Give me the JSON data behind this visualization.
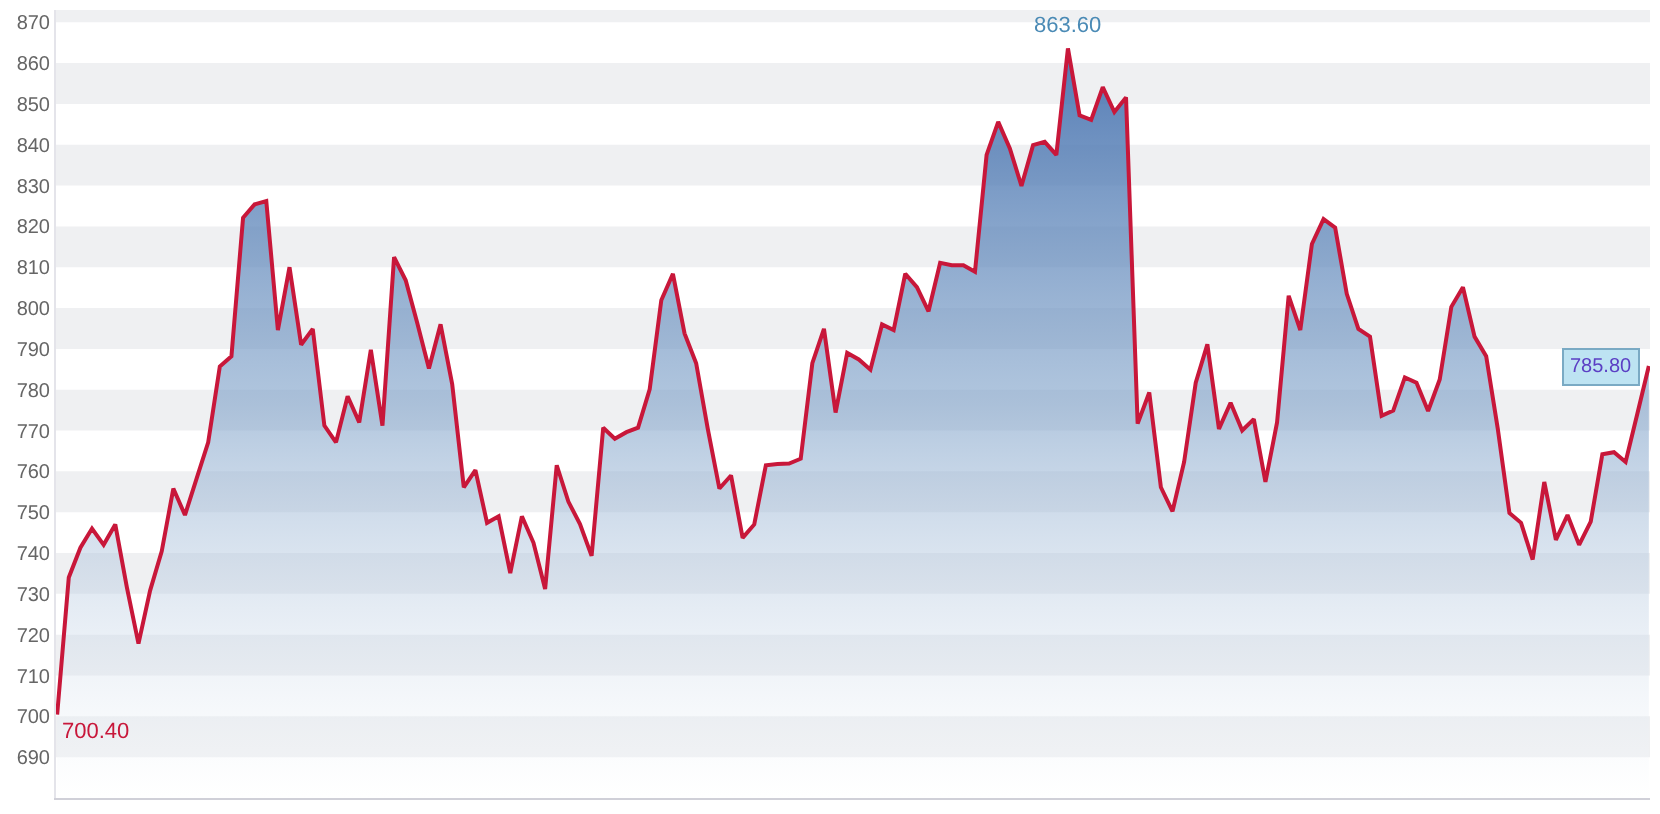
{
  "chart_data": {
    "type": "area",
    "categories": [
      null,
      null,
      null,
      null,
      null,
      null,
      null,
      null,
      null,
      null,
      null,
      null,
      null,
      null,
      null,
      null,
      null,
      null,
      null,
      null,
      null,
      null,
      null,
      null,
      null,
      null,
      null,
      null,
      null,
      null,
      null,
      null,
      null,
      null,
      null,
      null,
      null,
      null,
      null,
      null,
      null,
      null,
      null,
      null,
      null,
      null,
      null,
      null,
      null,
      null,
      null,
      null,
      null,
      null,
      null,
      null,
      null,
      null,
      null,
      null,
      null,
      null,
      null,
      null,
      null,
      null,
      null,
      null,
      null,
      null,
      null,
      null,
      null,
      null,
      null,
      null,
      null,
      null,
      null,
      null,
      null,
      null,
      null,
      null,
      null,
      null,
      null,
      null,
      null,
      null,
      null,
      null,
      null,
      null,
      null,
      null,
      null,
      null,
      null,
      null,
      null,
      null,
      null,
      null,
      null,
      null,
      null,
      null,
      null,
      null,
      null,
      null,
      null,
      null,
      null,
      null,
      null,
      null,
      null,
      null,
      null,
      null,
      null,
      null,
      null,
      null,
      null,
      null,
      null,
      null,
      null,
      null,
      null,
      null,
      null,
      null,
      null,
      null
    ],
    "series": [
      {
        "color": "#c8173a",
        "values": [
          700.4,
          734,
          741.3,
          746,
          742,
          747,
          731.6,
          717.8,
          730.8,
          740.4,
          755.8,
          749.3,
          758.2,
          767.1,
          785.7,
          788.2,
          822.1,
          825.4,
          826.2,
          794.6,
          810,
          791,
          794.9,
          771.2,
          767.1,
          778.4,
          772,
          789.8,
          771.2,
          812.5,
          806.8,
          796.3,
          785.2,
          796,
          781.4,
          756.1,
          760.3,
          747.4,
          749,
          735.1,
          749,
          742.5,
          731.2,
          761.5,
          752.6,
          747.1,
          739.3,
          770.7,
          768,
          769.6,
          770.7,
          780.1,
          801.9,
          808.4,
          793.8,
          786.5,
          770.4,
          755.8,
          759,
          743.7,
          747,
          761.5,
          761.8,
          761.9,
          763.1,
          786.5,
          794.9,
          774.4,
          789,
          787.4,
          784.9,
          796,
          794.6,
          808.4,
          805.1,
          799.2,
          811.1,
          810.5,
          810.5,
          808.9,
          837.5,
          845.6,
          839.1,
          829.9,
          839.9,
          840.7,
          837.5,
          863.6,
          847.2,
          846.1,
          854.1,
          848,
          851.6,
          771.7,
          779.3,
          756.1,
          750.2,
          762.3,
          781.7,
          791.1,
          770.4,
          776.8,
          770,
          772.8,
          757.4,
          772,
          803,
          794.6,
          815.7,
          821.8,
          819.7,
          803.5,
          794.9,
          793,
          773.6,
          774.9,
          783,
          781.7,
          774.8,
          782.5,
          800.3,
          805.1,
          793,
          788.2,
          770.4,
          749.8,
          747.4,
          738.4,
          757.4,
          743.2,
          749.3,
          742,
          747.7,
          764.2,
          764.7,
          762.3,
          774,
          785.8
        ]
      }
    ],
    "ylim": [
      680,
      873
    ],
    "yticks": [
      690,
      700,
      710,
      720,
      730,
      740,
      750,
      760,
      770,
      780,
      790,
      800,
      810,
      820,
      830,
      840,
      850,
      860,
      870
    ],
    "grid": false,
    "bands": [
      {
        "axis": "y",
        "from": 690,
        "to": 700,
        "color": "#eff0f2"
      },
      {
        "axis": "y",
        "from": 710,
        "to": 720,
        "color": "#eff0f2"
      },
      {
        "axis": "y",
        "from": 730,
        "to": 740,
        "color": "#eff0f2"
      },
      {
        "axis": "y",
        "from": 750,
        "to": 760,
        "color": "#eff0f2"
      },
      {
        "axis": "y",
        "from": 770,
        "to": 780,
        "color": "#eff0f2"
      },
      {
        "axis": "y",
        "from": 790,
        "to": 800,
        "color": "#eff0f2"
      },
      {
        "axis": "y",
        "from": 810,
        "to": 820,
        "color": "#eff0f2"
      },
      {
        "axis": "y",
        "from": 830,
        "to": 840,
        "color": "#eff0f2"
      },
      {
        "axis": "y",
        "from": 850,
        "to": 860,
        "color": "#eff0f2"
      },
      {
        "axis": "y",
        "from": 870,
        "to": 873,
        "color": "#eff0f2"
      }
    ],
    "annotations": [
      {
        "text": "700.40",
        "y": 700.4
      },
      {
        "text": "863.60",
        "y": 863.6
      },
      {
        "text": "785.80",
        "y": 785.8
      }
    ]
  }
}
